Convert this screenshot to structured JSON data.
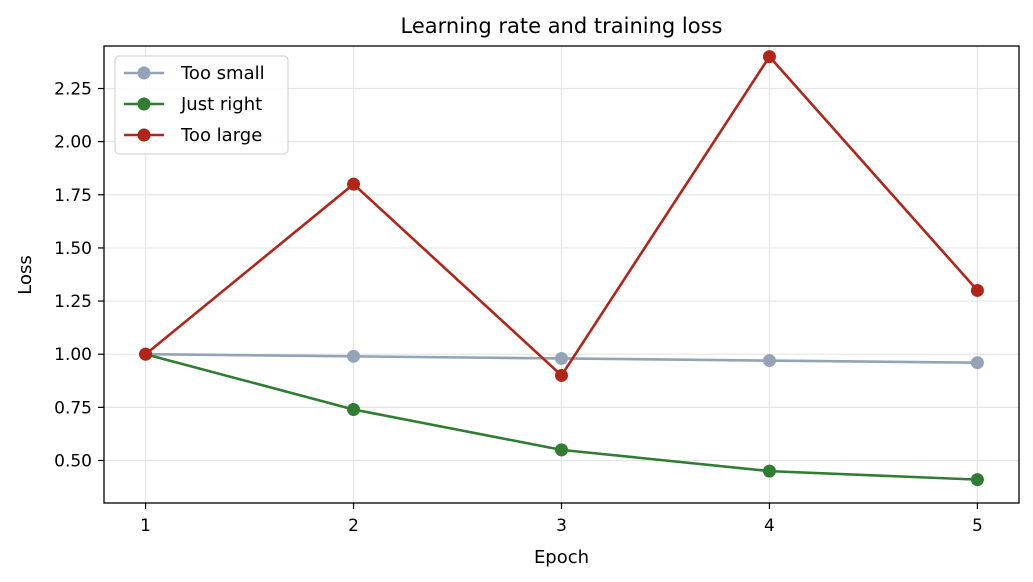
{
  "chart_data": {
    "type": "line",
    "title": "Learning rate and training loss",
    "xlabel": "Epoch",
    "ylabel": "Loss",
    "x": [
      1,
      2,
      3,
      4,
      5
    ],
    "xlim": [
      0.8,
      5.2
    ],
    "ylim": [
      0.3,
      2.45
    ],
    "yticks": [
      0.5,
      0.75,
      1.0,
      1.25,
      1.5,
      1.75,
      2.0,
      2.25
    ],
    "ytick_labels": [
      "0.50",
      "0.75",
      "1.00",
      "1.25",
      "1.50",
      "1.75",
      "2.00",
      "2.25"
    ],
    "xticks": [
      1,
      2,
      3,
      4,
      5
    ],
    "xtick_labels": [
      "1",
      "2",
      "3",
      "4",
      "5"
    ],
    "grid": true,
    "legend_position": "top-left",
    "series": [
      {
        "name": "Too small",
        "color": "#94a3b8",
        "values": [
          1.0,
          0.99,
          0.98,
          0.97,
          0.96
        ]
      },
      {
        "name": "Just right",
        "color": "#2e7d32",
        "values": [
          1.0,
          0.74,
          0.55,
          0.45,
          0.41
        ]
      },
      {
        "name": "Too large",
        "color": "#b22418",
        "values": [
          1.0,
          1.8,
          0.9,
          2.4,
          1.3
        ]
      }
    ]
  }
}
